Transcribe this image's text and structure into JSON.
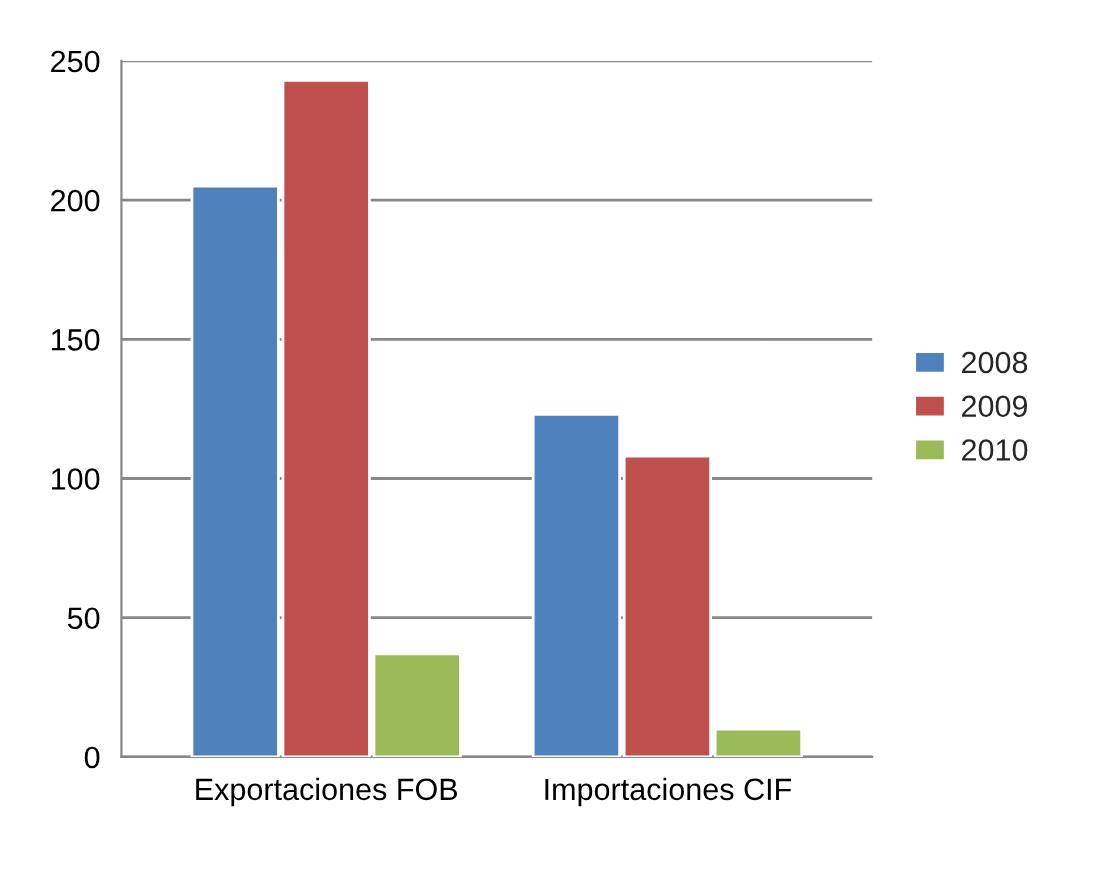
{
  "chart_data": {
    "type": "bar",
    "categories": [
      "Exportaciones FOB",
      "Importaciones CIF"
    ],
    "series": [
      {
        "name": "2008",
        "color": "#4f81bd",
        "values": [
          205,
          123
        ]
      },
      {
        "name": "2009",
        "color": "#c0504d",
        "values": [
          243,
          108
        ]
      },
      {
        "name": "2010",
        "color": "#9bbb59",
        "values": [
          37,
          10
        ]
      }
    ],
    "ylim": [
      0,
      250
    ],
    "yticks": [
      0,
      50,
      100,
      150,
      200,
      250
    ],
    "grid": "y",
    "legend": "right"
  }
}
